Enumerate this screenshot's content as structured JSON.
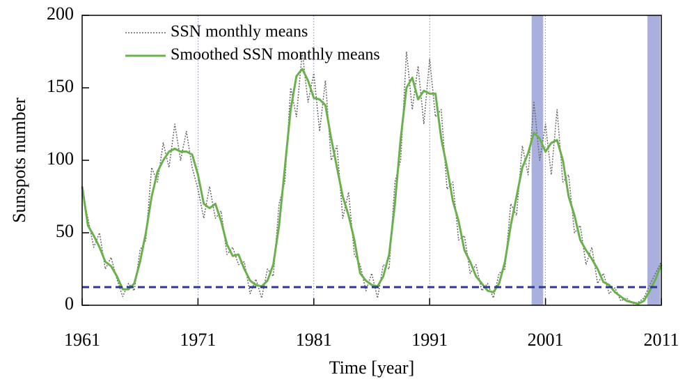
{
  "chart_data": {
    "type": "line",
    "xlabel": "Time [year]",
    "ylabel": "Sunspots number",
    "x": [
      1961,
      1961.5,
      1962,
      1962.5,
      1963,
      1963.5,
      1964,
      1964.5,
      1965,
      1965.5,
      1966,
      1966.5,
      1967,
      1967.5,
      1968,
      1968.5,
      1969,
      1969.5,
      1970,
      1970.5,
      1971,
      1971.5,
      1972,
      1972.5,
      1973,
      1973.5,
      1974,
      1974.5,
      1975,
      1975.5,
      1976,
      1976.5,
      1977,
      1977.5,
      1978,
      1978.5,
      1979,
      1979.5,
      1980,
      1980.5,
      1981,
      1981.5,
      1982,
      1982.5,
      1983,
      1983.5,
      1984,
      1984.5,
      1985,
      1985.5,
      1986,
      1986.5,
      1987,
      1987.5,
      1988,
      1988.5,
      1989,
      1989.5,
      1990,
      1990.5,
      1991,
      1991.5,
      1992,
      1992.5,
      1993,
      1993.5,
      1994,
      1994.5,
      1995,
      1995.5,
      1996,
      1996.5,
      1997,
      1997.5,
      1998,
      1998.5,
      1999,
      1999.5,
      2000,
      2000.5,
      2001,
      2001.5,
      2002,
      2002.5,
      2003,
      2003.5,
      2004,
      2004.5,
      2005,
      2005.5,
      2006,
      2006.5,
      2007,
      2007.5,
      2008,
      2008.5,
      2009,
      2009.5,
      2010,
      2010.5,
      2011
    ],
    "series": [
      {
        "name": "SSN monthly means",
        "color": "#666666",
        "style": "dotted",
        "values": [
          78,
          60,
          40,
          50,
          25,
          33,
          18,
          6,
          15,
          10,
          38,
          45,
          95,
          85,
          112,
          95,
          125,
          100,
          120,
          95,
          80,
          60,
          82,
          60,
          65,
          35,
          40,
          28,
          30,
          8,
          18,
          5,
          25,
          20,
          70,
          85,
          150,
          130,
          175,
          140,
          160,
          120,
          155,
          100,
          110,
          60,
          78,
          35,
          28,
          10,
          22,
          5,
          28,
          25,
          85,
          100,
          175,
          135,
          165,
          125,
          170,
          130,
          135,
          80,
          85,
          45,
          48,
          22,
          28,
          10,
          15,
          5,
          22,
          25,
          70,
          62,
          110,
          90,
          140,
          100,
          125,
          90,
          135,
          85,
          90,
          50,
          55,
          28,
          40,
          15,
          22,
          8,
          12,
          3,
          5,
          1,
          2,
          5,
          14,
          22,
          30
        ]
      },
      {
        "name": "Smoothed SSN monthly means",
        "color": "#6ab04c",
        "style": "solid",
        "values": [
          82,
          55,
          48,
          40,
          30,
          27,
          20,
          11,
          11,
          15,
          30,
          50,
          75,
          92,
          100,
          106,
          108,
          106,
          106,
          104,
          90,
          70,
          67,
          70,
          58,
          42,
          34,
          35,
          25,
          17,
          14,
          13,
          17,
          28,
          55,
          95,
          135,
          158,
          163,
          155,
          143,
          142,
          138,
          115,
          95,
          75,
          62,
          45,
          22,
          17,
          14,
          13,
          20,
          35,
          70,
          115,
          150,
          157,
          142,
          148,
          146,
          146,
          115,
          95,
          72,
          58,
          38,
          30,
          20,
          15,
          10,
          9,
          15,
          30,
          55,
          75,
          95,
          105,
          119,
          115,
          106,
          112,
          114,
          100,
          75,
          62,
          45,
          38,
          32,
          25,
          16,
          14,
          9,
          6,
          3,
          2,
          1,
          3,
          10,
          18,
          28
        ]
      }
    ],
    "xlim": [
      1961,
      2011
    ],
    "ylim": [
      0,
      200
    ],
    "xticks": [
      1961,
      1971,
      1981,
      1991,
      2001,
      2011
    ],
    "yticks": [
      0,
      50,
      100,
      150,
      200
    ],
    "grid_x": true,
    "shaded_regions": [
      [
        1999.8,
        2000.8
      ],
      [
        2009.8,
        2010.9
      ]
    ],
    "shade_color": "#aab0dd",
    "threshold": 12.5,
    "threshold_color": "#2c3a8c",
    "legend": "upper left"
  }
}
